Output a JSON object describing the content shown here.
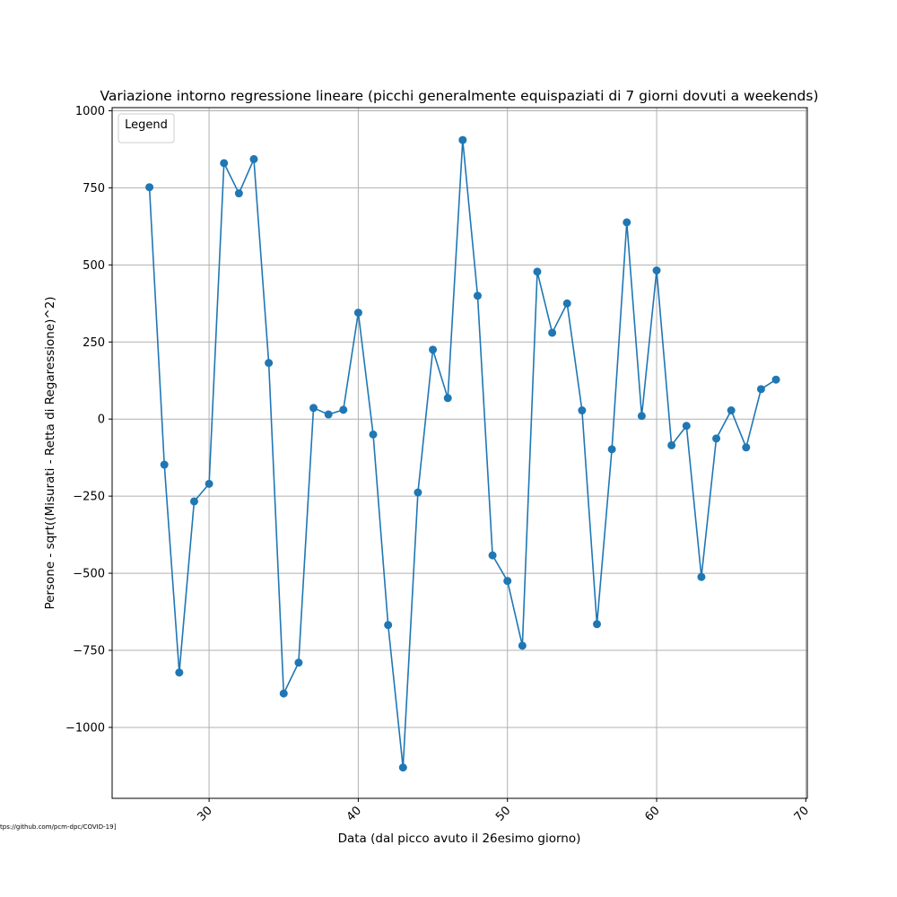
{
  "chart_data": {
    "type": "line",
    "title": "Variazione intorno regressione lineare (picchi generalmente equispaziati di 7 giorni dovuti a weekends)",
    "xlabel": "Data (dal picco avuto il 26esimo giorno)",
    "ylabel": "Persone - sqrt((Misurati - Retta di Regaressione)^2)",
    "legend_title": "Legend",
    "legend_position": "upper-left",
    "source_note": "tps://github.com/pcm-dpc/COVID-19]",
    "grid": true,
    "xlim": [
      23.5,
      70.1
    ],
    "ylim": [
      -1230,
      1010
    ],
    "xticks": [
      30,
      40,
      50,
      60,
      70
    ],
    "yticks": [
      1000,
      750,
      500,
      250,
      0,
      -250,
      -500,
      -750,
      -1000
    ],
    "ytick_labels": [
      "1000",
      "750",
      "500",
      "250",
      "0",
      "−250",
      "−500",
      "−750",
      "−1000"
    ],
    "series": [
      {
        "color": "#1f77b4",
        "marker": "circle",
        "x": [
          26,
          27,
          28,
          29,
          30,
          31,
          32,
          33,
          34,
          35,
          36,
          37,
          38,
          39,
          40,
          41,
          42,
          43,
          44,
          45,
          46,
          47,
          48,
          49,
          50,
          51,
          52,
          53,
          54,
          55,
          56,
          57,
          58,
          59,
          60,
          61,
          62,
          63,
          64,
          65,
          66,
          67,
          68
        ],
        "y": [
          752,
          -148,
          -822,
          -267,
          -210,
          830,
          732,
          843,
          182,
          -890,
          -790,
          36,
          15,
          30,
          345,
          -50,
          -668,
          -1130,
          -238,
          225,
          68,
          905,
          400,
          -442,
          -525,
          -735,
          478,
          280,
          375,
          28,
          -665,
          -98,
          638,
          10,
          482,
          -85,
          -22,
          -512,
          -63,
          28,
          -92,
          97,
          128
        ]
      }
    ]
  }
}
